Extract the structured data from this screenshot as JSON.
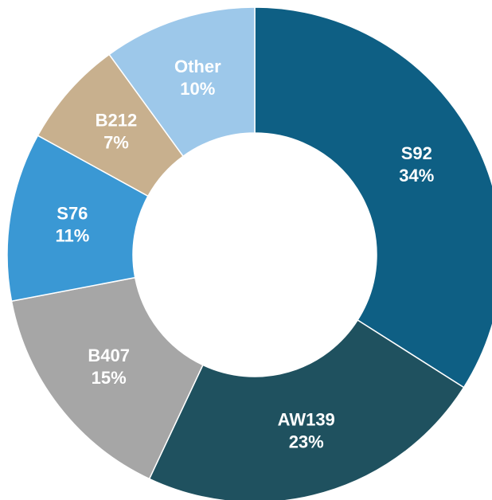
{
  "chart_data": {
    "type": "donut",
    "categories": [
      "S92",
      "AW139",
      "B407",
      "S76",
      "B212",
      "Other"
    ],
    "values": [
      34,
      23,
      15,
      11,
      7,
      10
    ],
    "value_labels": [
      "34%",
      "23%",
      "15%",
      "11%",
      "7%",
      "10%"
    ],
    "colors": [
      "#0e5f84",
      "#1f515f",
      "#a6a6a6",
      "#3a98d4",
      "#c8b08e",
      "#9dc8ea"
    ]
  }
}
